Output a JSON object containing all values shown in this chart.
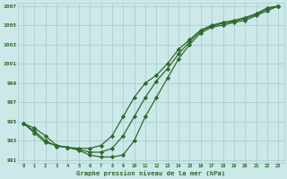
{
  "title": "Graphe pression niveau de la mer (hPa)",
  "x": [
    0,
    1,
    2,
    3,
    4,
    5,
    6,
    7,
    8,
    9,
    10,
    11,
    12,
    13,
    14,
    15,
    16,
    17,
    18,
    19,
    20,
    21,
    22,
    23
  ],
  "line1": [
    994.8,
    994.3,
    993.5,
    992.5,
    992.3,
    992.2,
    992.2,
    992.5,
    993.5,
    995.5,
    997.5,
    999.0,
    999.8,
    1001.0,
    1002.5,
    1003.5,
    1004.5,
    1005.0,
    1005.3,
    1005.5,
    1005.8,
    1006.2,
    1006.8,
    1007.0
  ],
  "line2": [
    994.8,
    993.8,
    992.8,
    992.5,
    992.3,
    992.0,
    991.5,
    991.3,
    991.3,
    991.5,
    993.0,
    995.5,
    997.5,
    999.5,
    1001.5,
    1003.0,
    1004.2,
    1004.8,
    1005.0,
    1005.3,
    1005.5,
    1006.0,
    1006.5,
    1007.0
  ],
  "line3": [
    994.8,
    994.0,
    993.0,
    992.4,
    992.3,
    992.1,
    991.8,
    991.8,
    992.2,
    993.5,
    995.5,
    997.5,
    999.2,
    1000.5,
    1002.0,
    1003.3,
    1004.4,
    1004.9,
    1005.2,
    1005.4,
    1005.7,
    1006.1,
    1006.7,
    1007.0
  ],
  "line_color": "#2d6a2d",
  "bg_color": "#cce8e8",
  "grid_color": "#aad0d0",
  "text_color": "#2d6a2d",
  "ylim": [
    991,
    1007
  ],
  "yticks": [
    991,
    993,
    995,
    997,
    999,
    1001,
    1003,
    1005,
    1007
  ],
  "xlim": [
    -0.5,
    23.5
  ],
  "figwidth": 3.2,
  "figheight": 2.0,
  "dpi": 100
}
